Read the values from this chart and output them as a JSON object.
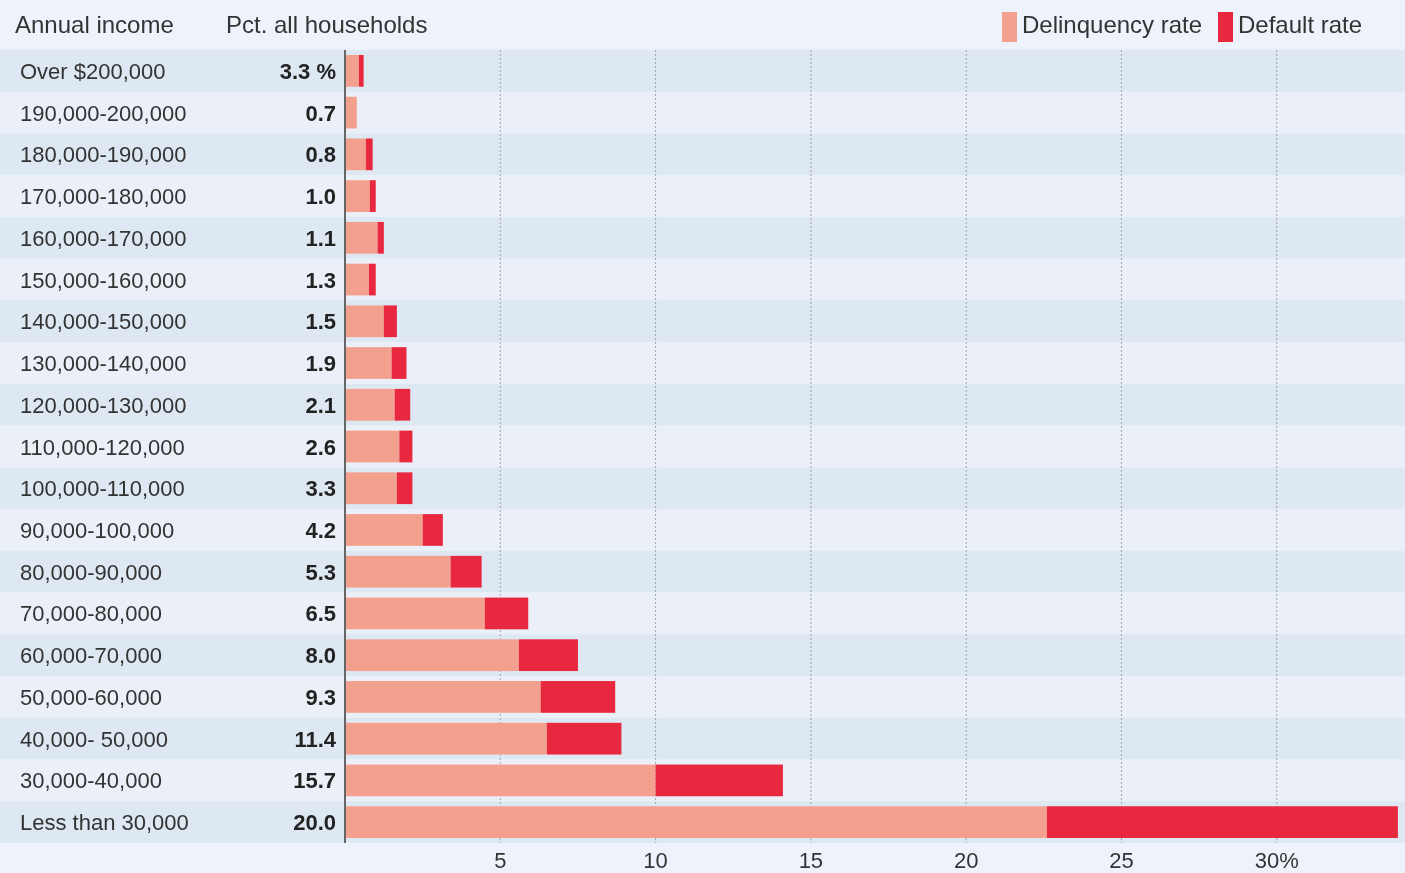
{
  "chart_data": {
    "type": "bar",
    "orientation": "horizontal",
    "stacked": true,
    "ylabel": "Annual income",
    "categories": [
      "Over $200,000",
      "190,000-200,000",
      "180,000-190,000",
      "170,000-180,000",
      "160,000-170,000",
      "150,000-160,000",
      "140,000-150,000",
      "130,000-140,000",
      "120,000-130,000",
      "110,000-120,000",
      "100,000-110,000",
      "90,000-100,000",
      "80,000-90,000",
      "70,000-80,000",
      "60,000-70,000",
      "50,000-60,000",
      "40,000- 50,000",
      "30,000-40,000",
      "Less than 30,000"
    ],
    "series": [
      {
        "name": "Delinquency rate",
        "color": "#f4a08e",
        "values": [
          0.45,
          0.38,
          0.67,
          0.8,
          1.05,
          0.77,
          1.25,
          1.5,
          1.6,
          1.75,
          1.67,
          2.5,
          3.4,
          4.5,
          5.6,
          6.3,
          6.5,
          10.0,
          22.6
        ]
      },
      {
        "name": "Default rate",
        "color": "#e8283f",
        "values": [
          0.15,
          0,
          0.22,
          0.19,
          0.2,
          0.22,
          0.42,
          0.48,
          0.5,
          0.42,
          0.5,
          0.65,
          1.0,
          1.4,
          1.9,
          2.4,
          2.4,
          4.1,
          11.3
        ]
      }
    ],
    "xlim": [
      0,
      34
    ],
    "xticks": [
      5,
      10,
      15,
      20,
      25,
      {
        "value": 30,
        "label": "30%"
      }
    ],
    "grid": "x",
    "legend": "top right",
    "annotations": [
      "Pct. all households",
      "3.3 %",
      "0.7",
      "0.8",
      "1.0",
      "1.1",
      "1.3",
      "1.5",
      "1.9",
      "2.1",
      "2.6",
      "3.3",
      "4.2",
      "5.3",
      "6.5",
      "8.0",
      "9.3",
      "11.4",
      "15.7",
      "20.0"
    ]
  }
}
